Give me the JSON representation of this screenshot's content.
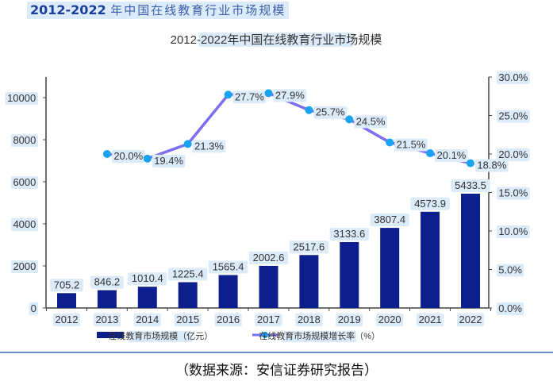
{
  "header": {
    "title_num": "2012-2022",
    "title_cn": "年中国在线教育行业市场规模"
  },
  "caption": "（数据来源：安信证券研究报告）",
  "chart_data": {
    "type": "bar+line",
    "title": "2012-2022年中国在线教育行业市场规模",
    "categories": [
      "2012",
      "2013",
      "2014",
      "2015",
      "2016",
      "2017",
      "2018",
      "2019",
      "2020",
      "2021",
      "2022"
    ],
    "series": [
      {
        "name": "在线教育市场规模（亿元）",
        "type": "bar",
        "axis": "left",
        "color": "#0d1f8c",
        "values": [
          705.2,
          846.2,
          1010.4,
          1225.4,
          1565.4,
          2002.6,
          2517.6,
          3133.6,
          3807.4,
          4573.9,
          5433.5
        ],
        "labels": [
          "705.2",
          "846.2",
          "1010.4",
          "1225.4",
          "1565.4",
          "2002.6",
          "2517.6",
          "3133.6",
          "3807.4",
          "4573.9",
          "5433.5"
        ]
      },
      {
        "name": "在线教育市场规模增长率（%）",
        "type": "line",
        "axis": "right",
        "color": "#7b6ff0",
        "marker_color": "#1aa3f0",
        "values": [
          null,
          20.0,
          19.4,
          21.3,
          27.7,
          27.9,
          25.7,
          24.5,
          21.5,
          20.1,
          18.8
        ],
        "labels": [
          null,
          "20.0%",
          "19.4%",
          "21.3%",
          "27.7%",
          "27.9%",
          "25.7%",
          "24.5%",
          "21.5%",
          "20.1%",
          "18.8%"
        ]
      }
    ],
    "y_left": {
      "range": [
        0,
        10000
      ],
      "ticks": [
        "0",
        "2000",
        "4000",
        "6000",
        "8000",
        "10000"
      ]
    },
    "y_right": {
      "range": [
        0,
        30
      ],
      "ticks": [
        "0.0%",
        "5.0%",
        "10.0%",
        "15.0%",
        "20.0%",
        "25.0%",
        "30.0%"
      ]
    },
    "grid": false,
    "legend": "bottom"
  }
}
